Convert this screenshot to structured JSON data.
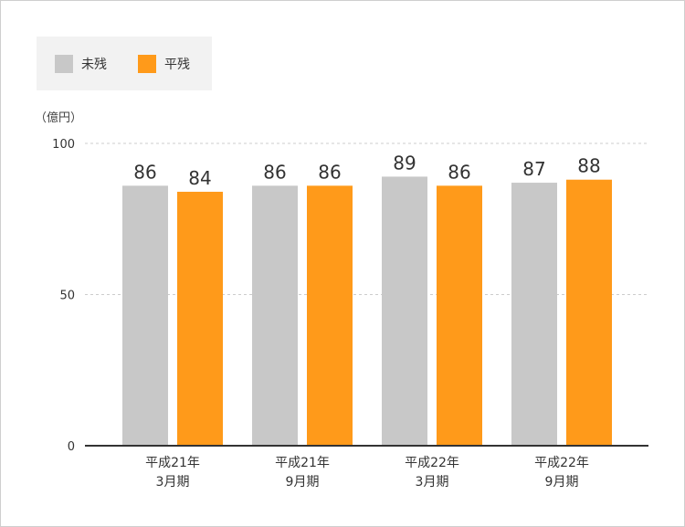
{
  "chart_data": {
    "type": "bar",
    "unit_label": "（億円）",
    "categories": [
      [
        "平成21年",
        "3月期"
      ],
      [
        "平成21年",
        "9月期"
      ],
      [
        "平成22年",
        "3月期"
      ],
      [
        "平成22年",
        "9月期"
      ]
    ],
    "series": [
      {
        "name": "未残",
        "values": [
          86,
          86,
          89,
          87
        ],
        "color": "#c8c8c8"
      },
      {
        "name": "平残",
        "values": [
          84,
          86,
          86,
          88
        ],
        "color": "#ff9a1a"
      }
    ],
    "ylim": [
      0,
      100
    ],
    "yticks": [
      0,
      50,
      100
    ],
    "grid": true,
    "legend_position": "top-left"
  }
}
